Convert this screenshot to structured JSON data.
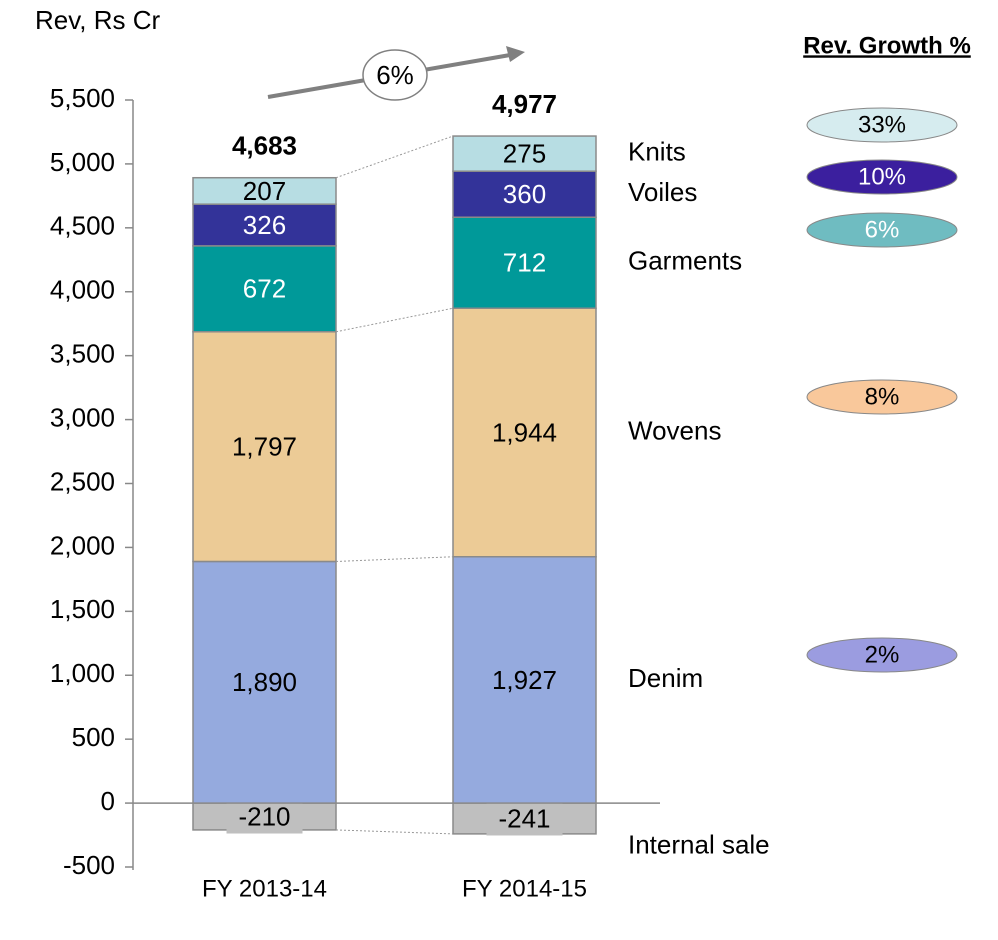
{
  "chart_data": {
    "type": "stacked_bar",
    "y_label": "Rev, Rs Cr",
    "categories": [
      "FY 2013-14",
      "FY 2014-15"
    ],
    "ylim": [
      -500,
      5500
    ],
    "yticks": [
      -500,
      {
        "value": 0,
        "label": "0"
      },
      500,
      {
        "value": 1000,
        "label": "1,000"
      },
      {
        "value": 1500,
        "label": "1,500"
      },
      {
        "value": 2000,
        "label": "2,000"
      },
      {
        "value": 2500,
        "label": "2,500"
      },
      {
        "value": 3000,
        "label": "3,000"
      },
      {
        "value": 3500,
        "label": "3,500"
      },
      {
        "value": 4000,
        "label": "4,000"
      },
      {
        "value": 4500,
        "label": "4,500"
      },
      {
        "value": 5000,
        "label": "5,000"
      },
      {
        "value": 5500,
        "label": "5,500"
      }
    ],
    "series": [
      {
        "name": "Internal sale",
        "color": "#bfbfbf",
        "label_color": "#000000",
        "values": [
          -210,
          -241
        ],
        "value_labels": [
          "-210",
          "-241"
        ]
      },
      {
        "name": "Denim",
        "color": "#95aade",
        "label_color": "#000000",
        "values": [
          1890,
          1927
        ],
        "value_labels": [
          "1,890",
          "1,927"
        ],
        "growth": 2,
        "growth_label": "2%",
        "growth_color": "#9b9ce0"
      },
      {
        "name": "Wovens",
        "color": "#eccb96",
        "label_color": "#000000",
        "values": [
          1797,
          1944
        ],
        "value_labels": [
          "1,797",
          "1,944"
        ],
        "growth": 8,
        "growth_label": "8%",
        "growth_color": "#f9c89b"
      },
      {
        "name": "Garments",
        "color": "#009999",
        "label_color": "#ffffff",
        "values": [
          672,
          712
        ],
        "value_labels": [
          "672",
          "712"
        ],
        "growth": 6,
        "growth_label": "6%",
        "growth_color": "#6fbcc1"
      },
      {
        "name": "Voiles",
        "color": "#333399",
        "label_color": "#ffffff",
        "values": [
          326,
          360
        ],
        "value_labels": [
          "326",
          "360"
        ],
        "growth": 10,
        "growth_label": "10%",
        "growth_color": "#3b1f9e"
      },
      {
        "name": "Knits",
        "color": "#b7dde3",
        "label_color": "#000000",
        "values": [
          207,
          275
        ],
        "value_labels": [
          "207",
          "275"
        ],
        "growth": 33,
        "growth_label": "33%",
        "growth_color": "#d6ecef"
      }
    ],
    "totals": [
      4683,
      4977
    ],
    "total_labels": [
      "4,683",
      "4,977"
    ],
    "growth_title": "Rev. Growth %",
    "overall_growth": 6,
    "overall_growth_label": "6%"
  }
}
